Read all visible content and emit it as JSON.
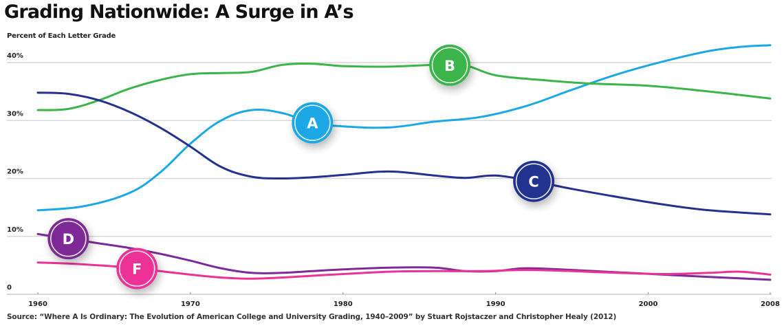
{
  "chart_data": {
    "type": "line",
    "title": "Grading Nationwide: A Surge in A’s",
    "subtitle": "Percent of Each Letter Grade",
    "ylabel": "Percent of Each Letter Grade",
    "xlabel": "",
    "source": "Source: “Where A Is Ordinary: The Evolution of American College and University Grading, 1940–2009” by Stuart Rojstaczer and Christopher Healy (2012)",
    "xlim": [
      1960,
      2008
    ],
    "ylim": [
      0,
      40
    ],
    "grid": true,
    "legend": "inline-labels",
    "y_ticks": [
      {
        "value": 0,
        "label": "0"
      },
      {
        "value": 10,
        "label": "10%"
      },
      {
        "value": 20,
        "label": "20%"
      },
      {
        "value": 30,
        "label": "30%"
      },
      {
        "value": 40,
        "label": "40%"
      }
    ],
    "x_ticks": [
      {
        "value": 1960,
        "label": "1960"
      },
      {
        "value": 1970,
        "label": "1970"
      },
      {
        "value": 1980,
        "label": "1980"
      },
      {
        "value": 1990,
        "label": "1990"
      },
      {
        "value": 2000,
        "label": "2000"
      },
      {
        "value": 2008,
        "label": "2008"
      }
    ],
    "series": [
      {
        "name": "A",
        "color": "#1aa8e6",
        "label_at": 1978,
        "x": [
          1960,
          1963,
          1966,
          1968,
          1970,
          1972,
          1974,
          1976,
          1978,
          1980,
          1983,
          1986,
          1989,
          1992,
          1995,
          1998,
          2001,
          2004,
          2006,
          2008
        ],
        "y": [
          14.5,
          15.2,
          17.5,
          21.0,
          26.0,
          30.0,
          31.8,
          31.3,
          29.6,
          29.0,
          28.8,
          29.8,
          30.6,
          32.5,
          35.3,
          38.0,
          40.2,
          42.0,
          42.7,
          43.0
        ]
      },
      {
        "name": "B",
        "color": "#3ab54a",
        "label_at": 1987,
        "x": [
          1960,
          1962,
          1964,
          1966,
          1968,
          1970,
          1972,
          1974,
          1976,
          1978,
          1980,
          1983,
          1986,
          1988,
          1990,
          1993,
          1996,
          2000,
          2004,
          2008
        ],
        "y": [
          31.8,
          32.0,
          33.5,
          35.5,
          37.0,
          38.0,
          38.2,
          38.4,
          39.6,
          39.8,
          39.4,
          39.3,
          39.6,
          39.5,
          37.8,
          37.0,
          36.4,
          36.0,
          35.0,
          33.8
        ]
      },
      {
        "name": "C",
        "color": "#24318f",
        "label_at": 1992.5,
        "x": [
          1960,
          1962,
          1964,
          1966,
          1968,
          1970,
          1972,
          1974,
          1976,
          1978,
          1980,
          1983,
          1986,
          1988,
          1990,
          1992.5,
          1995,
          1998,
          2001,
          2004,
          2008
        ],
        "y": [
          34.8,
          34.6,
          33.5,
          31.5,
          28.8,
          25.5,
          22.0,
          20.3,
          20.0,
          20.2,
          20.6,
          21.2,
          20.5,
          20.1,
          20.5,
          19.5,
          18.2,
          16.8,
          15.5,
          14.5,
          13.8
        ]
      },
      {
        "name": "D",
        "color": "#7d2a96",
        "label_at": 1962,
        "x": [
          1960,
          1962,
          1964,
          1966,
          1968,
          1970,
          1972,
          1974,
          1976,
          1978,
          1980,
          1983,
          1986,
          1988,
          1990,
          1992,
          1995,
          1998,
          2001,
          2004,
          2008
        ],
        "y": [
          10.4,
          9.6,
          8.8,
          8.0,
          7.0,
          5.8,
          4.5,
          3.7,
          3.7,
          4.0,
          4.3,
          4.6,
          4.6,
          4.0,
          4.0,
          4.5,
          4.2,
          3.8,
          3.4,
          3.0,
          2.5
        ]
      },
      {
        "name": "F",
        "color": "#ec3296",
        "label_at": 1966.5,
        "x": [
          1960,
          1962,
          1964,
          1966,
          1968,
          1970,
          1972,
          1974,
          1976,
          1978,
          1980,
          1983,
          1986,
          1989,
          1992,
          1995,
          1998,
          2001,
          2004,
          2006,
          2008
        ],
        "y": [
          5.5,
          5.3,
          5.0,
          4.6,
          4.0,
          3.4,
          2.9,
          2.7,
          2.9,
          3.2,
          3.5,
          3.9,
          4.0,
          4.0,
          4.2,
          4.0,
          3.7,
          3.5,
          3.7,
          3.9,
          3.4
        ]
      }
    ]
  },
  "grid_color": "#d8d8d8"
}
